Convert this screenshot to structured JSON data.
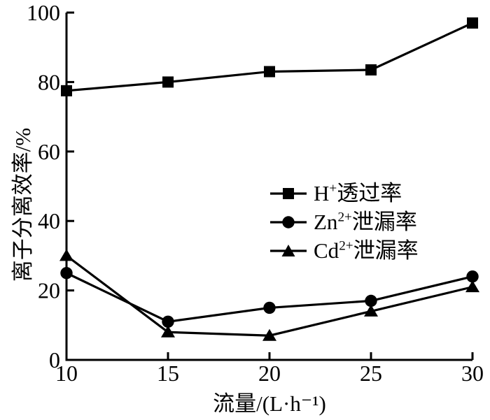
{
  "chart_data": {
    "type": "line",
    "title": "",
    "xlabel": "流量/(L·h⁻¹)",
    "ylabel": "离子分离效率/%",
    "x": [
      10,
      15,
      20,
      25,
      30
    ],
    "xlim": [
      10,
      30
    ],
    "ylim": [
      0,
      100
    ],
    "xticks": [
      "10",
      "15",
      "20",
      "25",
      "30"
    ],
    "yticks": [
      "0",
      "20",
      "40",
      "60",
      "80",
      "100"
    ],
    "grid": false,
    "legend_position": "inside-center-right",
    "series": [
      {
        "name": "H⁺透过率",
        "marker": "square",
        "values": [
          77.5,
          80,
          83,
          83.5,
          97
        ],
        "label_parts": {
          "pre": "H",
          "sup": "+",
          "post": "透过率"
        }
      },
      {
        "name": "Zn²⁺泄漏率",
        "marker": "circle",
        "values": [
          25,
          11,
          15,
          17,
          24
        ],
        "label_parts": {
          "pre": "Zn",
          "sup": "2+",
          "post": "泄漏率"
        }
      },
      {
        "name": "Cd²⁺泄漏率",
        "marker": "triangle",
        "values": [
          30,
          8,
          7,
          14,
          21
        ],
        "label_parts": {
          "pre": "Cd",
          "sup": "2+",
          "post": "泄漏率"
        }
      }
    ],
    "colors": {
      "line": "#000000",
      "background": "#ffffff"
    }
  }
}
